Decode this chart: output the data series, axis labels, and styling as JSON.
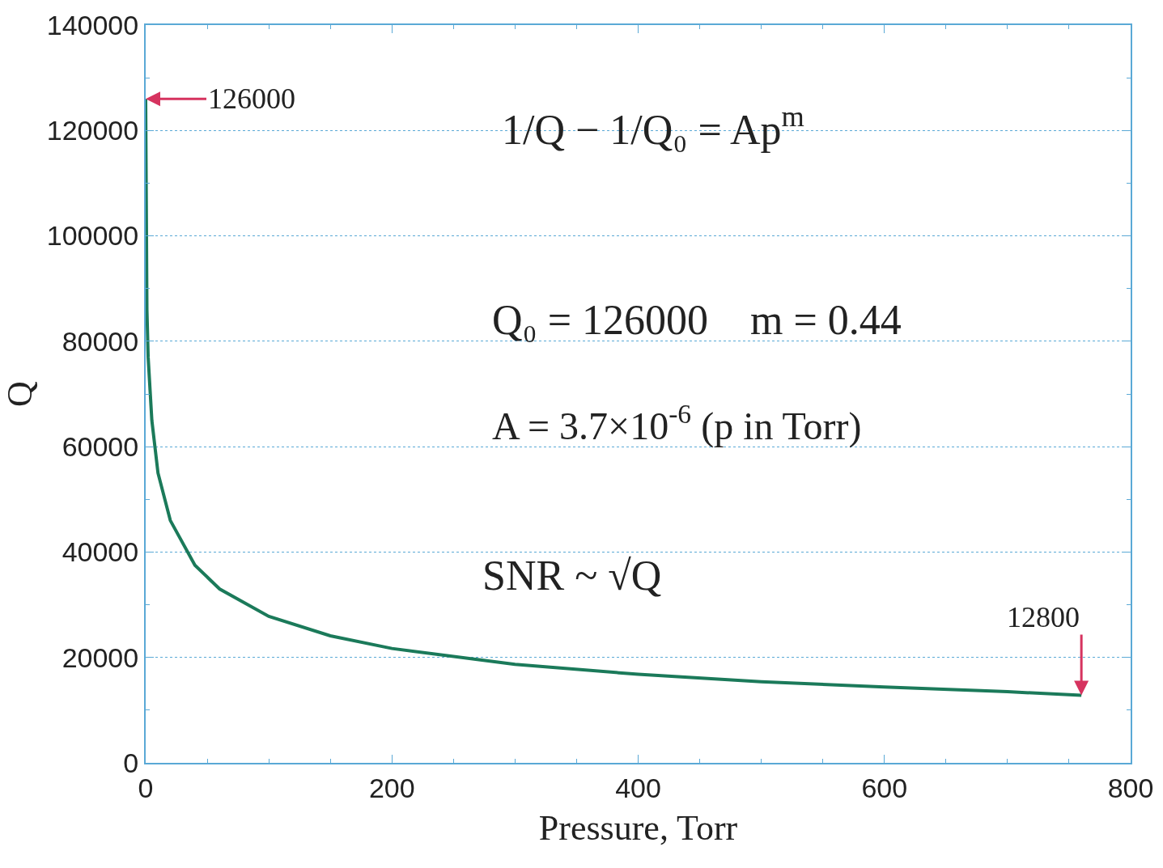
{
  "chart_data": {
    "type": "line",
    "xlabel": "Pressure, Torr",
    "ylabel": "Q",
    "x": [
      0,
      1,
      2,
      5,
      10,
      20,
      40,
      60,
      100,
      150,
      200,
      300,
      400,
      500,
      600,
      700,
      760
    ],
    "series": [
      {
        "color": "#1b7a5a",
        "values": [
          126000,
          86000,
          77000,
          65000,
          55000,
          46000,
          37500,
          33000,
          27800,
          24100,
          21700,
          18700,
          16800,
          15400,
          14400,
          13500,
          12800
        ]
      }
    ],
    "xlim": [
      0,
      800
    ],
    "xticks": [
      0,
      200,
      400,
      600,
      800
    ],
    "ylim": [
      0,
      140000
    ],
    "yticks": [
      0,
      20000,
      40000,
      60000,
      80000,
      100000,
      120000,
      140000
    ],
    "grid": "y",
    "marker": "none",
    "line_style": "solid",
    "annotations": [
      {
        "text": "126000",
        "x": 0,
        "y": 126000
      },
      {
        "text": "12800",
        "x": 760,
        "y": 12800
      },
      "1/Q − 1/Q₀ = Ap$^{m}$",
      "Q₀ = 126000    m = 0.44",
      "A = 3.7×10$^{-6}$ (p in Torr)",
      "SNR ~ √Q"
    ]
  }
}
